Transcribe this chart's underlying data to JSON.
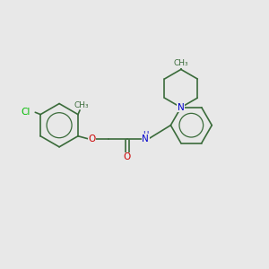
{
  "background_color": "#e8e8e8",
  "bond_color": "#3a6b3a",
  "atom_colors": {
    "Cl": "#00bb00",
    "O": "#cc0000",
    "N": "#0000cc",
    "C": "#3a6b3a"
  },
  "lw": 1.2,
  "fig_w": 3.0,
  "fig_h": 3.0,
  "dpi": 100,
  "xlim": [
    0,
    10
  ],
  "ylim": [
    0,
    10
  ]
}
